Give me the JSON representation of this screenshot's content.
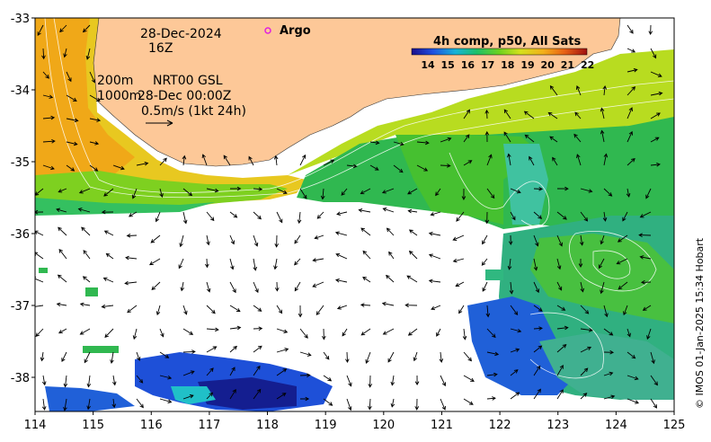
{
  "map": {
    "date": "28-Dec-2024",
    "hour": "16Z",
    "contours_label": "200m",
    "contours_label2": "1000m",
    "current_source": "NRT00 GSL",
    "current_time": "28-Dec 00:00Z",
    "scale_label": "0.5m/s (1kt 24h)",
    "argo_label": "Argo",
    "colorbar_title": "4h comp, p50, All Sats",
    "colorbar_ticks": [
      "14",
      "15",
      "16",
      "17",
      "18",
      "19",
      "20",
      "21",
      "22"
    ],
    "credit": "© IMOS 01-Jan-2025 15:34 Hobart",
    "x_ticks": [
      "114",
      "115",
      "116",
      "117",
      "118",
      "119",
      "120",
      "121",
      "122",
      "123",
      "124",
      "125"
    ],
    "y_ticks": [
      "-33",
      "-34",
      "-35",
      "-36",
      "-37",
      "-38"
    ],
    "colors": {
      "land": "#fdc898",
      "argo": "#e020e0"
    }
  }
}
